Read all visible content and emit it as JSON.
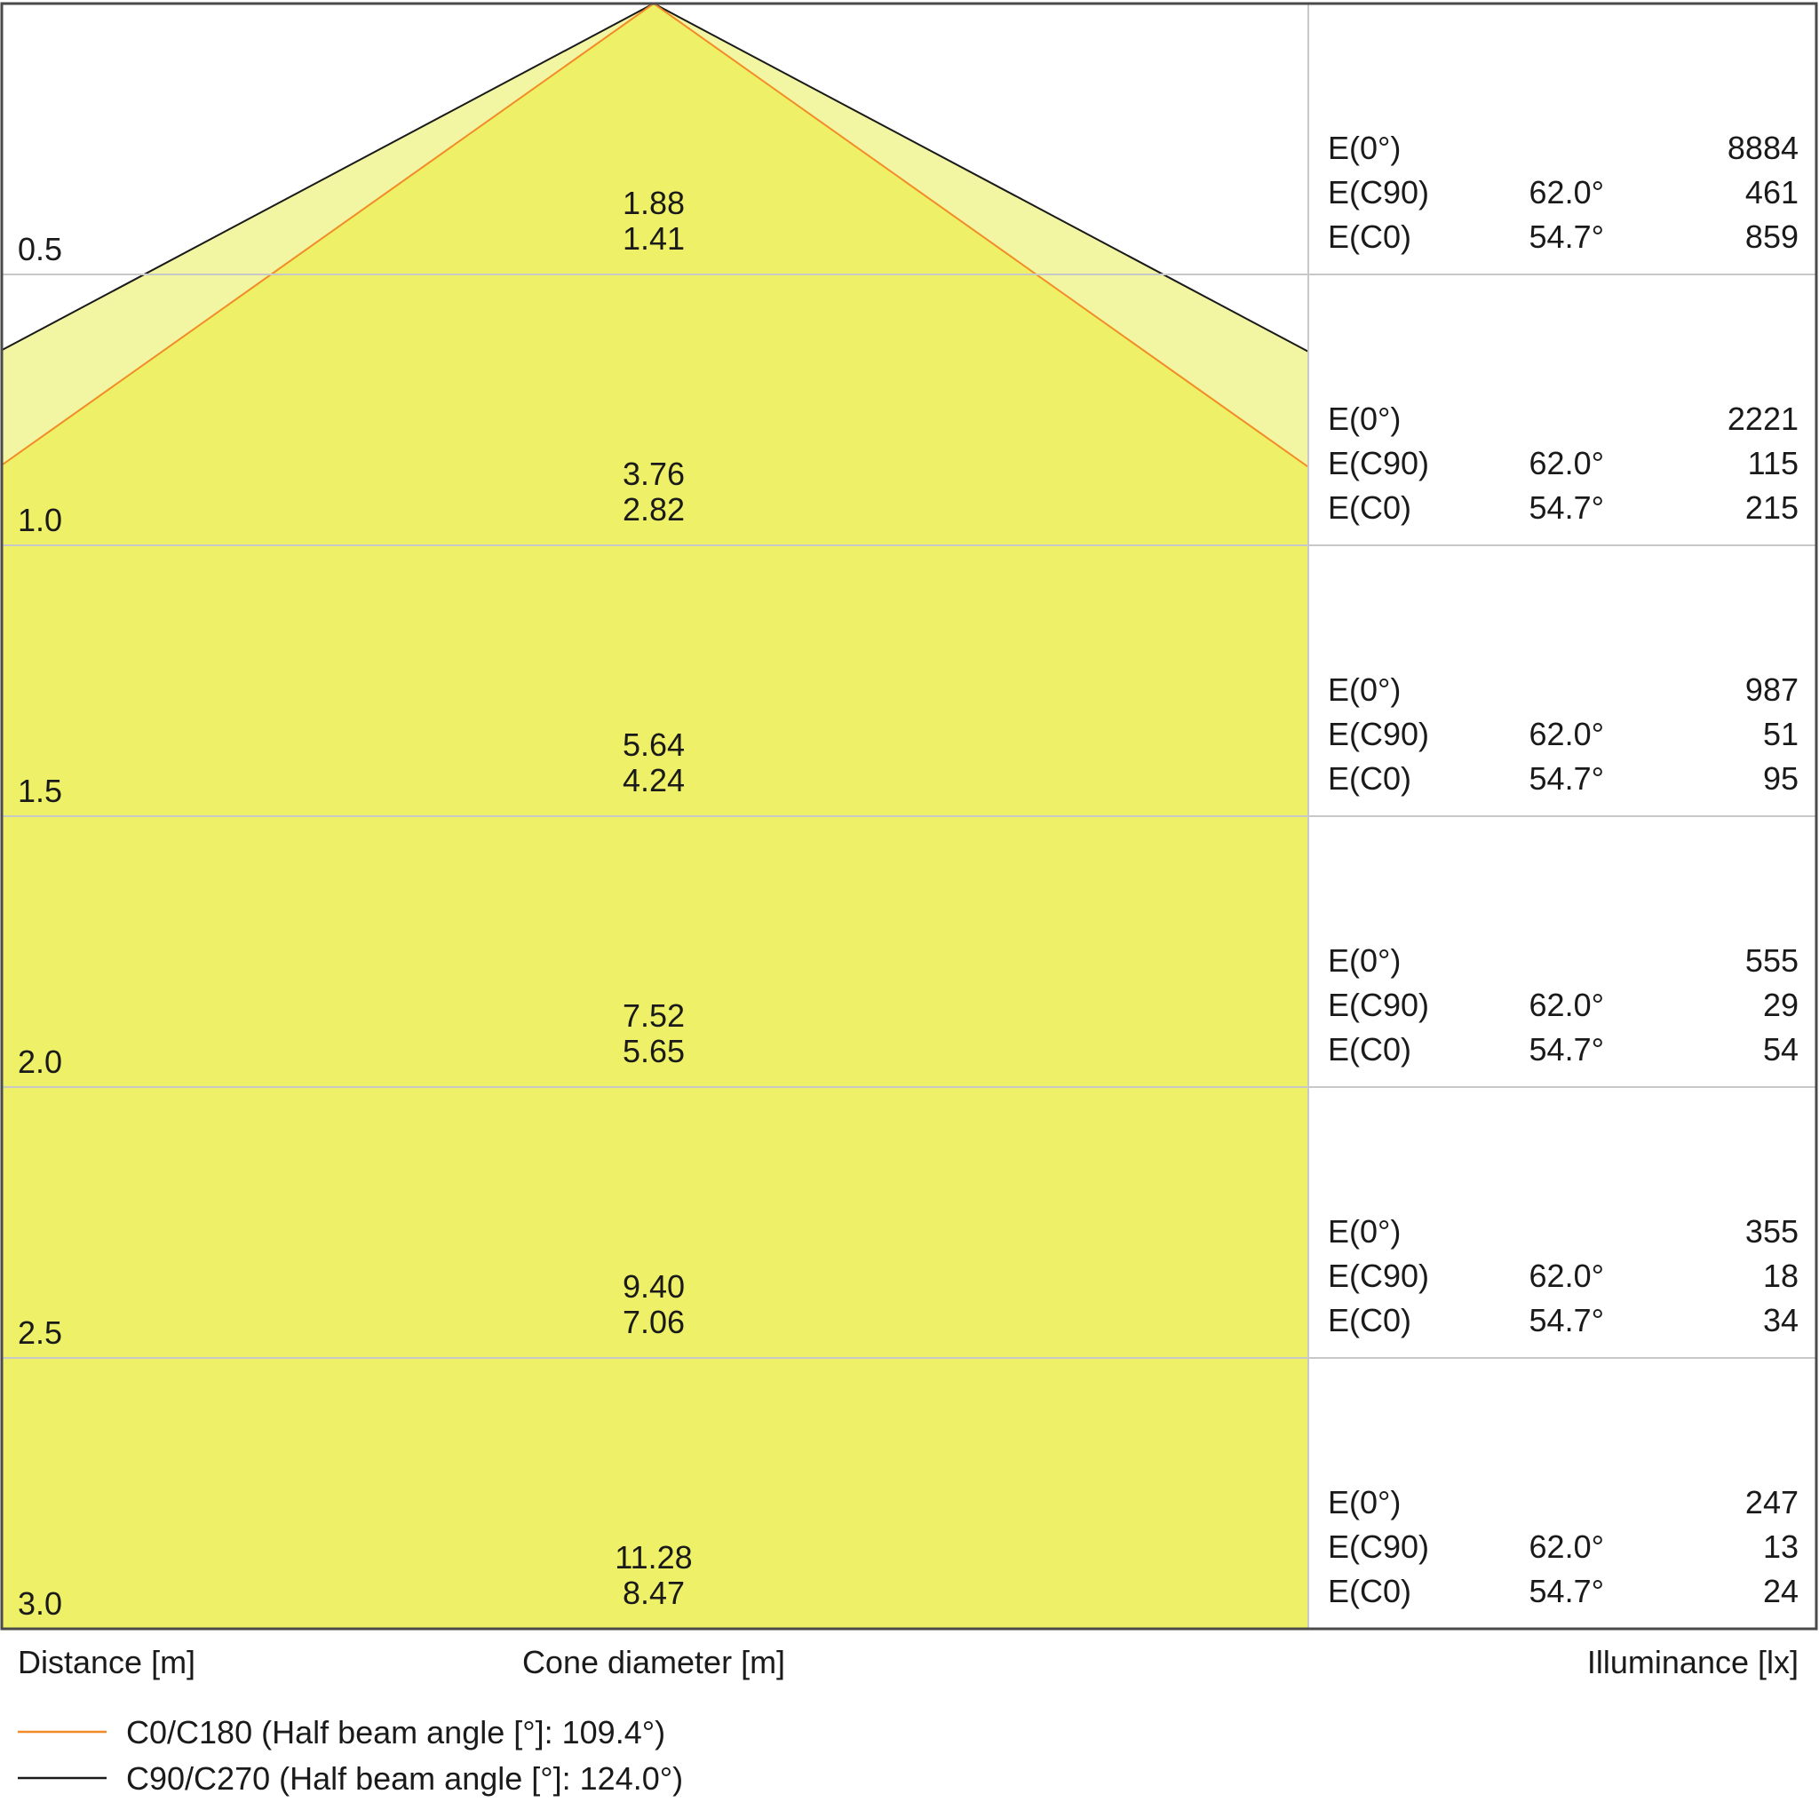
{
  "chart_data": {
    "type": "table",
    "colors": {
      "cone_c90": "#f2f5a1",
      "cone_c0": "#eef167",
      "line_c0": "#f28c28",
      "line_c90": "#1a1a1a",
      "grid": "#c8c8c8",
      "frame": "#4a4a4a"
    },
    "rows": [
      {
        "distance": "0.5",
        "cone_c90": "1.88",
        "cone_c0": "1.41",
        "e0_label": "E(0°)",
        "e0": "8884",
        "ec90_label": "E(C90)",
        "ec90_angle": "62.0°",
        "ec90": "461",
        "ec0_label": "E(C0)",
        "ec0_angle": "54.7°",
        "ec0": "859"
      },
      {
        "distance": "1.0",
        "cone_c90": "3.76",
        "cone_c0": "2.82",
        "e0_label": "E(0°)",
        "e0": "2221",
        "ec90_label": "E(C90)",
        "ec90_angle": "62.0°",
        "ec90": "115",
        "ec0_label": "E(C0)",
        "ec0_angle": "54.7°",
        "ec0": "215"
      },
      {
        "distance": "1.5",
        "cone_c90": "5.64",
        "cone_c0": "4.24",
        "e0_label": "E(0°)",
        "e0": "987",
        "ec90_label": "E(C90)",
        "ec90_angle": "62.0°",
        "ec90": "51",
        "ec0_label": "E(C0)",
        "ec0_angle": "54.7°",
        "ec0": "95"
      },
      {
        "distance": "2.0",
        "cone_c90": "7.52",
        "cone_c0": "5.65",
        "e0_label": "E(0°)",
        "e0": "555",
        "ec90_label": "E(C90)",
        "ec90_angle": "62.0°",
        "ec90": "29",
        "ec0_label": "E(C0)",
        "ec0_angle": "54.7°",
        "ec0": "54"
      },
      {
        "distance": "2.5",
        "cone_c90": "9.40",
        "cone_c0": "7.06",
        "e0_label": "E(0°)",
        "e0": "355",
        "ec90_label": "E(C90)",
        "ec90_angle": "62.0°",
        "ec90": "18",
        "ec0_label": "E(C0)",
        "ec0_angle": "54.7°",
        "ec0": "34"
      },
      {
        "distance": "3.0",
        "cone_c90": "11.28",
        "cone_c0": "8.47",
        "e0_label": "E(0°)",
        "e0": "247",
        "ec90_label": "E(C90)",
        "ec90_angle": "62.0°",
        "ec90": "13",
        "ec0_label": "E(C0)",
        "ec0_angle": "54.7°",
        "ec0": "24"
      }
    ],
    "xlabel": "Cone diameter [m]",
    "ylabel": "Distance [m]",
    "illuminance_label": "Illuminance [lx]",
    "legend": [
      {
        "name": "C0/C180 (Half beam angle [°]: 109.4°)",
        "half_beam_angle": 109.4,
        "color": "#f28c28"
      },
      {
        "name": "C90/C270 (Half beam angle [°]: 124.0°)",
        "half_beam_angle": 124.0,
        "color": "#1a1a1a"
      }
    ]
  }
}
